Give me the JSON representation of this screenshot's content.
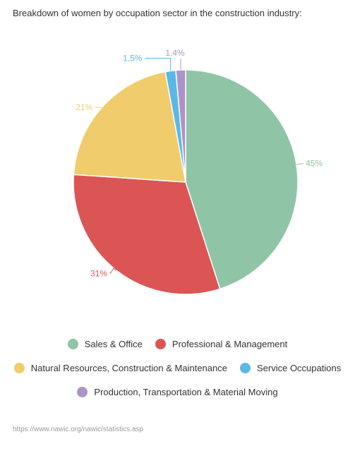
{
  "title": "Breakdown of women by occupation sector in the construction industry:",
  "source": "https://www.nawic.org/nawic/statistics.asp",
  "chart_data": {
    "type": "pie",
    "title": "Breakdown of women by occupation sector in the construction industry:",
    "legend_position": "bottom",
    "slices": [
      {
        "name": "Sales & Office",
        "value": 45,
        "label": "45%",
        "color": "#8fc5a6"
      },
      {
        "name": "Professional & Management",
        "value": 31,
        "label": "31%",
        "color": "#dc5555"
      },
      {
        "name": "Natural Resources, Construction & Maintenance",
        "value": 21,
        "label": "21%",
        "color": "#f0cc6c"
      },
      {
        "name": "Service Occupations",
        "value": 1.5,
        "label": "1.5%",
        "color": "#5bb8e6"
      },
      {
        "name": "Production, Transportation & Material Moving",
        "value": 1.4,
        "label": "1.4%",
        "color": "#ae93c9"
      }
    ]
  }
}
